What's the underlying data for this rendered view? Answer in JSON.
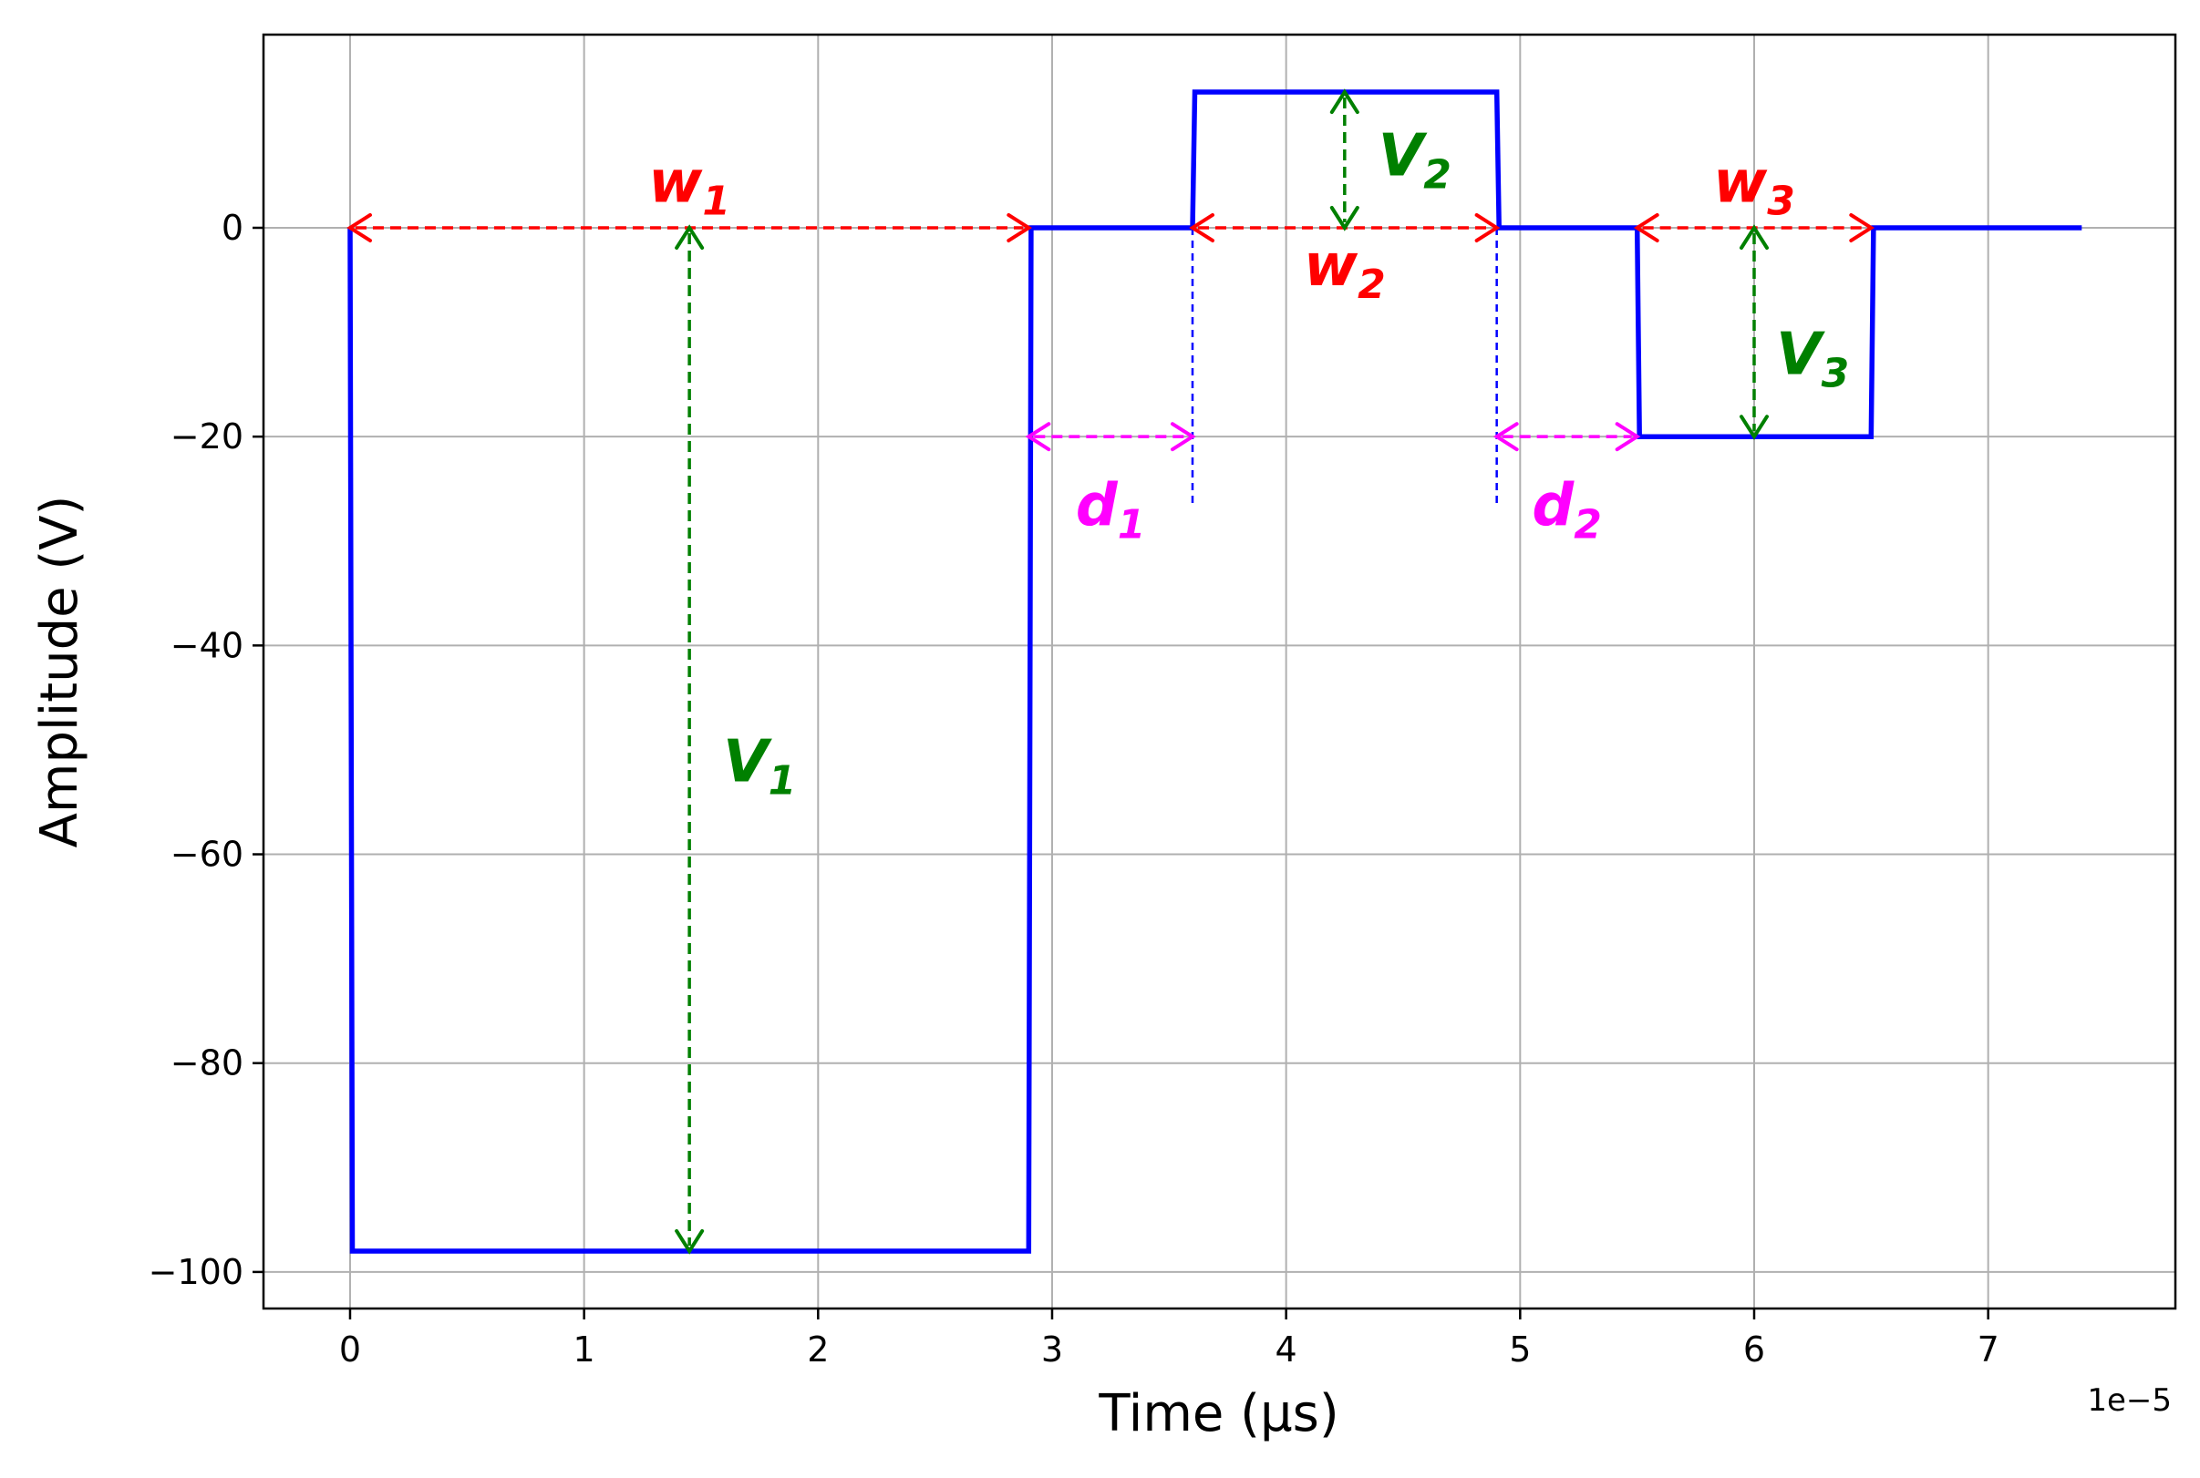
{
  "chart_data": {
    "type": "line",
    "xlabel": "Time (μs)",
    "ylabel": "Amplitude (V)",
    "x_offset_label": "1e−5",
    "xlim": [
      -0.37,
      7.8
    ],
    "ylim": [
      -103.5,
      18.5
    ],
    "xticks": [
      0,
      1,
      2,
      3,
      4,
      5,
      6,
      7
    ],
    "xtick_labels": [
      "0",
      "1",
      "2",
      "3",
      "4",
      "5",
      "6",
      "7"
    ],
    "yticks": [
      0,
      -20,
      -40,
      -60,
      -80,
      -100
    ],
    "ytick_labels": [
      "0",
      "−20",
      "−40",
      "−60",
      "−80",
      "−100"
    ],
    "grid": true,
    "series": [
      {
        "color": "#0000ff",
        "x": [
          0,
          0.01,
          2.9,
          2.91,
          3.6,
          3.61,
          4.9,
          4.91,
          5.5,
          5.51,
          6.5,
          6.51,
          7.4
        ],
        "y": [
          0,
          -98,
          -98,
          0,
          0,
          13,
          13,
          0,
          0,
          -20,
          -20,
          0,
          0
        ]
      }
    ],
    "annotations": {
      "guides": [
        {
          "x": 3.6,
          "y1": 0,
          "y2": -26.5,
          "color": "#0000ff"
        },
        {
          "x": 4.9,
          "y1": 0,
          "y2": -26.5,
          "color": "#0000ff"
        }
      ],
      "arrows": [
        {
          "name": "w1",
          "from": [
            0,
            0
          ],
          "to": [
            2.9,
            0
          ],
          "color": "#ff0000"
        },
        {
          "name": "w2",
          "from": [
            3.6,
            0
          ],
          "to": [
            4.9,
            0
          ],
          "color": "#ff0000"
        },
        {
          "name": "w3",
          "from": [
            5.5,
            0
          ],
          "to": [
            6.5,
            0
          ],
          "color": "#ff0000"
        },
        {
          "name": "V1",
          "from": [
            1.45,
            0
          ],
          "to": [
            1.45,
            -98
          ],
          "color": "#008000"
        },
        {
          "name": "V2",
          "from": [
            4.25,
            13
          ],
          "to": [
            4.25,
            0
          ],
          "color": "#008000"
        },
        {
          "name": "V3",
          "from": [
            6.0,
            0
          ],
          "to": [
            6.0,
            -20
          ],
          "color": "#008000"
        },
        {
          "name": "d1",
          "from": [
            2.9,
            -20
          ],
          "to": [
            3.6,
            -20
          ],
          "color": "#ff00ff"
        },
        {
          "name": "d2",
          "from": [
            4.9,
            -20
          ],
          "to": [
            5.5,
            -20
          ],
          "color": "#ff00ff"
        }
      ],
      "labels": [
        {
          "base": "w",
          "sub": "1",
          "x": 1.45,
          "y": 2.5,
          "color": "#ff0000"
        },
        {
          "base": "w",
          "sub": "2",
          "x": 4.25,
          "y": -5.5,
          "color": "#ff0000"
        },
        {
          "base": "w",
          "sub": "3",
          "x": 6.0,
          "y": 2.5,
          "color": "#ff0000"
        },
        {
          "base": "V",
          "sub": "1",
          "x": 1.75,
          "y": -53,
          "color": "#008000"
        },
        {
          "base": "V",
          "sub": "2",
          "x": 4.55,
          "y": 5,
          "color": "#008000"
        },
        {
          "base": "V",
          "sub": "3",
          "x": 6.25,
          "y": -14,
          "color": "#008000"
        },
        {
          "base": "d",
          "sub": "1",
          "x": 3.25,
          "y": -28.5,
          "color": "#ff00ff"
        },
        {
          "base": "d",
          "sub": "2",
          "x": 5.2,
          "y": -28.5,
          "color": "#ff00ff"
        }
      ]
    }
  }
}
